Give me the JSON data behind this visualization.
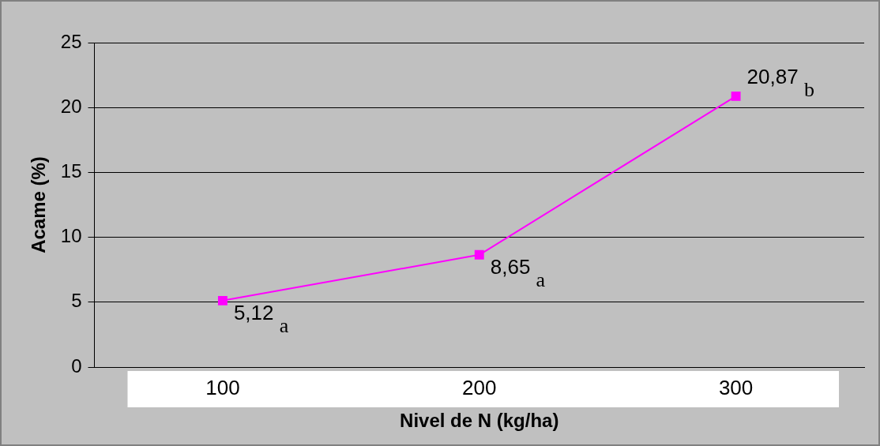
{
  "chart_data": {
    "type": "line",
    "xlabel": "Nivel de N (kg/ha)",
    "ylabel": "Acame (%)",
    "categories": [
      "100",
      "200",
      "300"
    ],
    "series": [
      {
        "color": "#ff00ff",
        "values": [
          5.12,
          8.65,
          20.87
        ],
        "value_labels": [
          "5,12 $_{a}$",
          "8,65 $_{a}$",
          "20,87 $_{b}$"
        ]
      }
    ],
    "ylim": [
      0,
      25
    ],
    "yticks": [
      0,
      5,
      10,
      15,
      20,
      25
    ],
    "grid": "y",
    "legend": false,
    "marker": "square",
    "line_style": "solid"
  }
}
